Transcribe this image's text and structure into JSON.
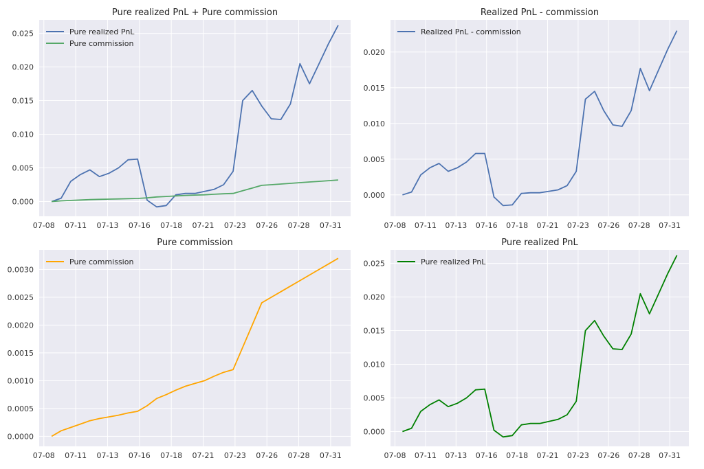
{
  "chart_data": [
    {
      "type": "line",
      "title": "Pure realized PnL + Pure commission",
      "xlabel": "",
      "ylabel": "",
      "x_ticks": [
        "07-08",
        "07-11",
        "07-13",
        "07-16",
        "07-18",
        "07-21",
        "07-23",
        "07-26",
        "07-28",
        "07-31"
      ],
      "y_ticks": [
        "0.000",
        "0.005",
        "0.010",
        "0.015",
        "0.020",
        "0.025"
      ],
      "ylim": [
        -0.0022,
        0.027
      ],
      "legend": "top-left",
      "grid": true,
      "x": [
        "07-08",
        "07-09",
        "07-10",
        "07-11",
        "07-12",
        "07-13",
        "07-14",
        "07-15",
        "07-16",
        "07-16.5",
        "07-17",
        "07-18",
        "07-19",
        "07-20",
        "07-21",
        "07-22",
        "07-22.5",
        "07-23",
        "07-24",
        "07-24.5",
        "07-25",
        "07-25.5",
        "07-26",
        "07-27",
        "07-27.5",
        "07-28",
        "07-29",
        "07-29.5",
        "07-30",
        "07-31",
        "07-31.5"
      ],
      "series": [
        {
          "name": "Pure realized PnL",
          "color": "#4c72b0",
          "values": [
            0.0,
            0.0005,
            0.003,
            0.004,
            0.0047,
            0.0037,
            0.0042,
            0.005,
            0.0062,
            0.0063,
            0.0002,
            -0.0008,
            -0.0006,
            0.001,
            0.0012,
            0.0012,
            0.0015,
            0.0018,
            0.0025,
            0.0045,
            0.015,
            0.0165,
            0.0142,
            0.0123,
            0.0122,
            0.0145,
            0.0205,
            0.0175,
            0.0205,
            0.0235,
            0.0262
          ]
        },
        {
          "name": "Pure commission",
          "color": "#55a868",
          "values": [
            0.0,
            0.0001,
            0.00016,
            0.00022,
            0.00028,
            0.00032,
            0.00035,
            0.00038,
            0.00042,
            0.00045,
            0.00055,
            0.00068,
            0.00075,
            0.00083,
            0.0009,
            0.00095,
            0.001,
            0.00108,
            0.00115,
            0.0012,
            0.0016,
            0.002,
            0.0024,
            0.0025,
            0.0026,
            0.0027,
            0.0028,
            0.0029,
            0.003,
            0.0031,
            0.0032
          ]
        }
      ]
    },
    {
      "type": "line",
      "title": "Realized PnL - commission",
      "xlabel": "",
      "ylabel": "",
      "x_ticks": [
        "07-08",
        "07-11",
        "07-13",
        "07-16",
        "07-18",
        "07-21",
        "07-23",
        "07-26",
        "07-28",
        "07-31"
      ],
      "y_ticks": [
        "0.000",
        "0.005",
        "0.010",
        "0.015",
        "0.020"
      ],
      "ylim": [
        -0.003,
        0.0245
      ],
      "legend": "top-left",
      "grid": true,
      "x": [
        "07-08",
        "07-09",
        "07-10",
        "07-11",
        "07-12",
        "07-13",
        "07-14",
        "07-15",
        "07-16",
        "07-16.5",
        "07-17",
        "07-18",
        "07-19",
        "07-20",
        "07-21",
        "07-22",
        "07-22.5",
        "07-23",
        "07-24",
        "07-24.5",
        "07-25",
        "07-25.5",
        "07-26",
        "07-27",
        "07-27.5",
        "07-28",
        "07-29",
        "07-29.5",
        "07-30",
        "07-31",
        "07-31.5"
      ],
      "series": [
        {
          "name": "Realized PnL - commission",
          "color": "#4c72b0",
          "values": [
            0.0,
            0.0004,
            0.0028,
            0.0038,
            0.0044,
            0.0033,
            0.0038,
            0.0046,
            0.0058,
            0.0058,
            -0.0003,
            -0.0015,
            -0.0014,
            0.0002,
            0.0003,
            0.0003,
            0.0005,
            0.0007,
            0.0013,
            0.0033,
            0.0134,
            0.0145,
            0.0118,
            0.0098,
            0.0096,
            0.0118,
            0.0177,
            0.0146,
            0.0175,
            0.0204,
            0.023
          ]
        }
      ]
    },
    {
      "type": "line",
      "title": "Pure commission",
      "xlabel": "",
      "ylabel": "",
      "x_ticks": [
        "07-08",
        "07-11",
        "07-13",
        "07-16",
        "07-18",
        "07-21",
        "07-23",
        "07-26",
        "07-28",
        "07-31"
      ],
      "y_ticks": [
        "0.0000",
        "0.0005",
        "0.0010",
        "0.0015",
        "0.0020",
        "0.0025",
        "0.0030"
      ],
      "ylim": [
        -0.00018,
        0.00335
      ],
      "legend": "top-left",
      "grid": true,
      "x": [
        "07-08",
        "07-09",
        "07-10",
        "07-11",
        "07-12",
        "07-13",
        "07-14",
        "07-15",
        "07-16",
        "07-16.5",
        "07-17",
        "07-18",
        "07-19",
        "07-20",
        "07-21",
        "07-22",
        "07-22.5",
        "07-23",
        "07-24",
        "07-24.5",
        "07-25",
        "07-25.5",
        "07-26",
        "07-27",
        "07-27.5",
        "07-28",
        "07-29",
        "07-29.5",
        "07-30",
        "07-31",
        "07-31.5"
      ],
      "series": [
        {
          "name": "Pure commission",
          "color": "#ffa500",
          "values": [
            0.0,
            0.0001,
            0.00016,
            0.00022,
            0.00028,
            0.00032,
            0.00035,
            0.00038,
            0.00042,
            0.00045,
            0.00055,
            0.00068,
            0.00075,
            0.00083,
            0.0009,
            0.00095,
            0.001,
            0.00108,
            0.00115,
            0.0012,
            0.0016,
            0.002,
            0.0024,
            0.0025,
            0.0026,
            0.0027,
            0.0028,
            0.0029,
            0.003,
            0.0031,
            0.0032
          ]
        }
      ]
    },
    {
      "type": "line",
      "title": "Pure realized PnL",
      "xlabel": "",
      "ylabel": "",
      "x_ticks": [
        "07-08",
        "07-11",
        "07-13",
        "07-16",
        "07-18",
        "07-21",
        "07-23",
        "07-26",
        "07-28",
        "07-31"
      ],
      "y_ticks": [
        "0.000",
        "0.005",
        "0.010",
        "0.015",
        "0.020",
        "0.025"
      ],
      "ylim": [
        -0.0022,
        0.027
      ],
      "legend": "top-left",
      "grid": true,
      "x": [
        "07-08",
        "07-09",
        "07-10",
        "07-11",
        "07-12",
        "07-13",
        "07-14",
        "07-15",
        "07-16",
        "07-16.5",
        "07-17",
        "07-18",
        "07-19",
        "07-20",
        "07-21",
        "07-22",
        "07-22.5",
        "07-23",
        "07-24",
        "07-24.5",
        "07-25",
        "07-25.5",
        "07-26",
        "07-27",
        "07-27.5",
        "07-28",
        "07-29",
        "07-29.5",
        "07-30",
        "07-31",
        "07-31.5"
      ],
      "series": [
        {
          "name": "Pure realized PnL",
          "color": "#008000",
          "values": [
            0.0,
            0.0005,
            0.003,
            0.004,
            0.0047,
            0.0037,
            0.0042,
            0.005,
            0.0062,
            0.0063,
            0.0002,
            -0.0008,
            -0.0006,
            0.001,
            0.0012,
            0.0012,
            0.0015,
            0.0018,
            0.0025,
            0.0045,
            0.015,
            0.0165,
            0.0142,
            0.0123,
            0.0122,
            0.0145,
            0.0205,
            0.0175,
            0.0205,
            0.0235,
            0.0262
          ]
        }
      ]
    }
  ]
}
